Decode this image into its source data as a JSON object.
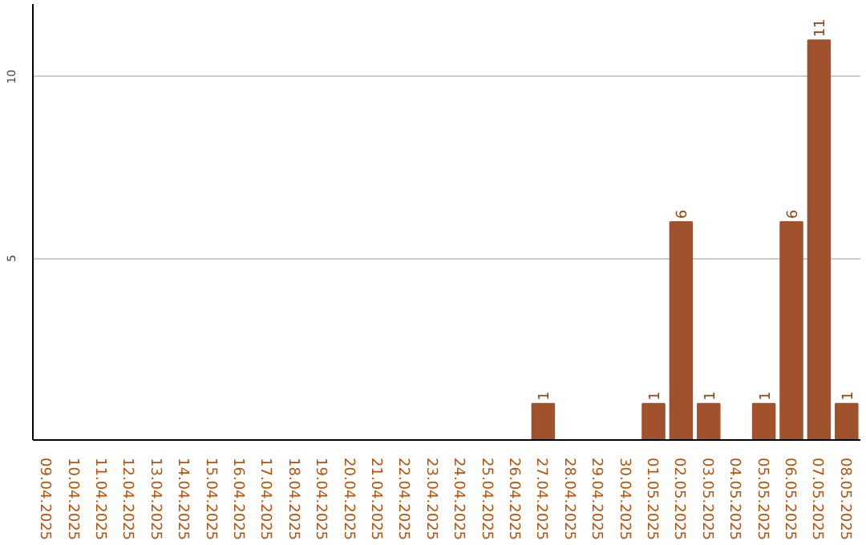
{
  "chart_data": {
    "type": "bar",
    "categories": [
      "09.04.2025",
      "10.04.2025",
      "11.04.2025",
      "12.04.2025",
      "13.04.2025",
      "14.04.2025",
      "15.04.2025",
      "16.04.2025",
      "17.04.2025",
      "18.04.2025",
      "19.04.2025",
      "20.04.2025",
      "21.04.2025",
      "22.04.2025",
      "23.04.2025",
      "24.04.2025",
      "25.04.2025",
      "26.04.2025",
      "27.04.2025",
      "28.04.2025",
      "29.04.2025",
      "30.04.2025",
      "01.05.2025",
      "02.05.2025",
      "03.05.2025",
      "04.05.2025",
      "05.05.2025",
      "06.05.2025",
      "07.05.2025",
      "08.05.2025"
    ],
    "values": [
      0,
      0,
      0,
      0,
      0,
      0,
      0,
      0,
      0,
      0,
      0,
      0,
      0,
      0,
      0,
      0,
      0,
      0,
      1,
      0,
      0,
      0,
      1,
      6,
      1,
      0,
      1,
      6,
      11,
      1
    ],
    "value_labels": [
      null,
      null,
      null,
      null,
      null,
      null,
      null,
      null,
      null,
      null,
      null,
      null,
      null,
      null,
      null,
      null,
      null,
      null,
      "1",
      null,
      null,
      null,
      "1",
      "6",
      "1",
      null,
      "1",
      "6",
      "11",
      "1"
    ],
    "color": "#a0522d",
    "ylim": [
      0,
      12
    ],
    "yticks": [
      5,
      10
    ],
    "grid": "y"
  }
}
